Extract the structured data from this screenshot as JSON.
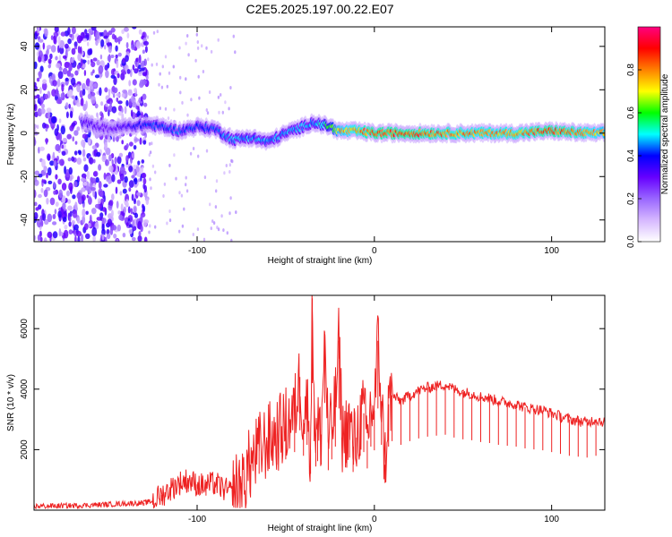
{
  "title": "C2E5.2025.197.00.22.E07",
  "chart_data": [
    {
      "type": "heatmap",
      "xlabel": "Height of straight line (km)",
      "ylabel": "Frequency (Hz)",
      "xlim": [
        -192,
        130
      ],
      "ylim": [
        -50,
        49
      ],
      "x_ticks": [
        -100,
        0,
        100
      ],
      "y_ticks": [
        -40,
        -20,
        0,
        20,
        40
      ],
      "grid": false,
      "colorbar": {
        "label": "Normalized spectral amplitude",
        "range": [
          0,
          1
        ],
        "ticks": [
          0.0,
          0.2,
          0.4,
          0.6,
          0.8
        ],
        "tick_labels": [
          "0.0",
          "0.2",
          "0.4",
          "0.6",
          "0.8"
        ],
        "colormap": [
          "#ffffff",
          "#d6b8ff",
          "#9966ff",
          "#6600ff",
          "#0000ff",
          "#00ffff",
          "#00ff00",
          "#ffff00",
          "#ff8000",
          "#ff0000",
          "#ff0080"
        ]
      },
      "noise_region": {
        "x_start": -192,
        "x_end": -128,
        "amplitude": 0.3
      },
      "ridge": {
        "x": [
          -165,
          -150,
          -128,
          -120,
          -110,
          -100,
          -90,
          -80,
          -70,
          -60,
          -50,
          -40,
          -35,
          -30,
          -25,
          -20,
          -10,
          0,
          20,
          50,
          80,
          100,
          120,
          130
        ],
        "freq": [
          5,
          2,
          4,
          3,
          1,
          3,
          2,
          -3,
          -2,
          -4,
          0,
          3,
          5,
          4,
          3,
          1,
          1,
          0,
          0,
          0,
          0,
          1,
          0,
          0
        ],
        "amplitude": [
          0.35,
          0.3,
          0.45,
          0.45,
          0.45,
          0.45,
          0.45,
          0.5,
          0.5,
          0.5,
          0.5,
          0.5,
          0.5,
          0.55,
          0.65,
          0.8,
          0.85,
          0.9,
          0.9,
          0.85,
          0.85,
          0.9,
          0.85,
          0.8
        ]
      }
    },
    {
      "type": "line",
      "xlabel": "Height of straight line (km)",
      "ylabel": "SNR (10 * v/v)",
      "xlim": [
        -192,
        130
      ],
      "ylim": [
        0,
        7100
      ],
      "x_ticks": [
        -100,
        0,
        100
      ],
      "y_ticks": [
        2000,
        4000,
        6000
      ],
      "grid": false,
      "series": [
        {
          "color": "#ee2222",
          "x": [
            -192,
            -180,
            -170,
            -160,
            -150,
            -140,
            -130,
            -125,
            -120,
            -115,
            -110,
            -105,
            -100,
            -95,
            -90,
            -85,
            -80,
            -75,
            -70,
            -65,
            -60,
            -55,
            -50,
            -45,
            -42,
            -40,
            -38,
            -36,
            -35,
            -34,
            -33,
            -32,
            -30,
            -28,
            -26,
            -24,
            -22,
            -20,
            -18,
            -16,
            -14,
            -12,
            -10,
            -8,
            -6,
            -4,
            -2,
            0,
            2,
            4,
            6,
            8,
            10,
            15,
            20,
            25,
            30,
            35,
            40,
            45,
            50,
            55,
            60,
            65,
            70,
            75,
            80,
            85,
            90,
            95,
            100,
            105,
            110,
            115,
            120,
            125,
            130
          ],
          "y": [
            130,
            140,
            150,
            170,
            190,
            220,
            240,
            300,
            500,
            700,
            900,
            1000,
            850,
            800,
            900,
            700,
            550,
            900,
            1500,
            2000,
            2300,
            2500,
            2800,
            3200,
            4400,
            3000,
            3600,
            2000,
            7000,
            3800,
            2400,
            2700,
            2500,
            5900,
            2200,
            2800,
            3500,
            5600,
            2400,
            2600,
            2900,
            2100,
            2400,
            3000,
            3200,
            2300,
            3500,
            3300,
            5600,
            3600,
            1500,
            3500,
            3800,
            3600,
            3800,
            3950,
            4050,
            4100,
            4150,
            4000,
            3900,
            3850,
            3750,
            3700,
            3600,
            3550,
            3500,
            3400,
            3350,
            3300,
            3200,
            3100,
            3000,
            2950,
            2900,
            3000,
            2900
          ]
        }
      ]
    }
  ]
}
